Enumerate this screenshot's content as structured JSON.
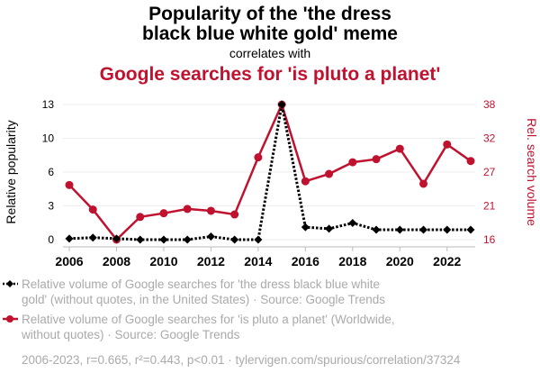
{
  "chart_data": {
    "type": "line",
    "title_line1": "Popularity of the 'the dress",
    "title_line2": "black blue white gold' meme",
    "connector": "correlates with",
    "subtitle": "Google searches for 'is pluto a planet'",
    "ylabel_left": "Relative popularity",
    "ylabel_right": "Rel. search volume",
    "x": [
      2006,
      2007,
      2008,
      2009,
      2010,
      2011,
      2012,
      2013,
      2014,
      2015,
      2016,
      2017,
      2018,
      2019,
      2020,
      2021,
      2022,
      2023
    ],
    "x_ticks": [
      "2006",
      "2008",
      "2010",
      "2012",
      "2014",
      "2016",
      "2018",
      "2020",
      "2022"
    ],
    "y_left_ticks": [
      "0",
      "3",
      "6",
      "10",
      "13"
    ],
    "y_left_range": [
      0,
      13
    ],
    "y_right_ticks": [
      "16",
      "21",
      "27",
      "32",
      "38"
    ],
    "y_right_range": [
      16,
      38
    ],
    "series": [
      {
        "name": "the dress meme",
        "axis": "left",
        "color": "#000000",
        "style": "dotted",
        "marker": "diamond",
        "values": [
          0.1,
          0.2,
          0.1,
          0,
          0,
          0,
          0.3,
          0,
          0,
          13,
          1.2,
          1.05,
          1.6,
          0.95,
          0.95,
          0.95,
          0.95,
          0.95
        ]
      },
      {
        "name": "is pluto a planet",
        "axis": "right",
        "color": "#c0122f",
        "style": "solid",
        "marker": "circle",
        "values": [
          24.9,
          20.9,
          16,
          19.7,
          20.3,
          21,
          20.7,
          20.1,
          29.4,
          38,
          25.5,
          26.7,
          28.6,
          29.1,
          30.8,
          25.1,
          31.5,
          28.8
        ]
      }
    ],
    "legend": [
      {
        "line1": "Relative volume of Google searches for 'the dress black blue white",
        "line2": "gold' (without quotes, in the United States) · Source: Google Trends"
      },
      {
        "line1": "Relative volume of Google searches for 'is pluto a planet' (Worldwide,",
        "line2": "without quotes) · Source: Google Trends"
      }
    ],
    "footer": "2006-2023, r=0.665, r²=0.443, p<0.01 · tylervigen.com/spurious/correlation/37324",
    "accent_color": "#c0122f"
  }
}
